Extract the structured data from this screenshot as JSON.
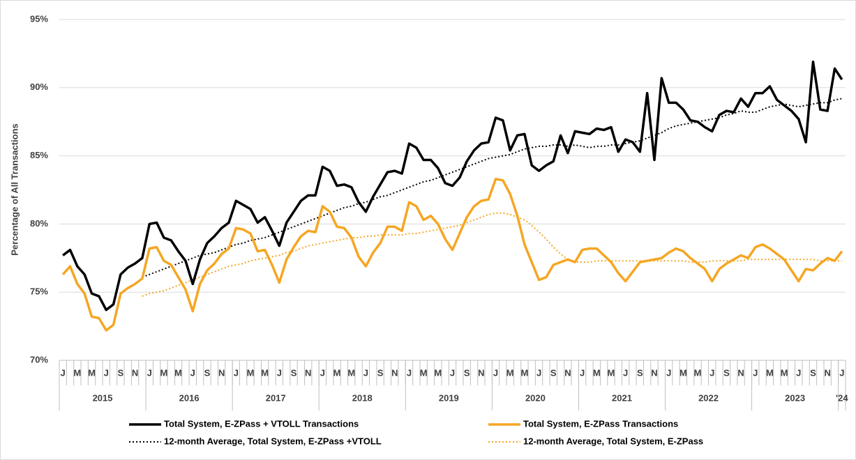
{
  "chart_data": {
    "type": "line",
    "y_axis_label": "Percentage of All Transactions",
    "ylim": [
      70,
      95
    ],
    "yticks": [
      {
        "value": 70,
        "label": "70%"
      },
      {
        "value": 75,
        "label": "75%"
      },
      {
        "value": 80,
        "label": "80%"
      },
      {
        "value": 85,
        "label": "85%"
      },
      {
        "value": 90,
        "label": "90%"
      },
      {
        "value": 95,
        "label": "95%"
      }
    ],
    "grid": true,
    "legend_position": "bottom",
    "categories": [
      "J",
      null,
      "M",
      null,
      "M",
      null,
      "J",
      null,
      "S",
      null,
      "N",
      null,
      "J",
      null,
      "M",
      null,
      "M",
      null,
      "J",
      null,
      "S",
      null,
      "N",
      null,
      "J",
      null,
      "M",
      null,
      "M",
      null,
      "J",
      null,
      "S",
      null,
      "N",
      null,
      "J",
      null,
      "M",
      null,
      "M",
      null,
      "J",
      null,
      "S",
      null,
      "N",
      null,
      "J",
      null,
      "M",
      null,
      "M",
      null,
      "J",
      null,
      "S",
      null,
      "N",
      null,
      "J",
      null,
      "M",
      null,
      "M",
      null,
      "J",
      null,
      "S",
      null,
      "N",
      null,
      "J",
      null,
      "M",
      null,
      "M",
      null,
      "J",
      null,
      "S",
      null,
      "N",
      null,
      "J",
      null,
      "M",
      null,
      "M",
      null,
      "J",
      null,
      "S",
      null,
      "N",
      null,
      "J",
      null,
      "M",
      null,
      "M",
      null,
      "J",
      null,
      "S",
      null,
      "N",
      null,
      "J"
    ],
    "category_groups": [
      {
        "label": "2015",
        "count": 12
      },
      {
        "label": "2016",
        "count": 12
      },
      {
        "label": "2017",
        "count": 12
      },
      {
        "label": "2018",
        "count": 12
      },
      {
        "label": "2019",
        "count": 12
      },
      {
        "label": "2020",
        "count": 12
      },
      {
        "label": "2021",
        "count": 12
      },
      {
        "label": "2022",
        "count": 12
      },
      {
        "label": "2023",
        "count": 12
      },
      {
        "label": "'24",
        "count": 1
      }
    ],
    "series": [
      {
        "name": "Total System, E-ZPass + VTOLL Transactions",
        "color": "#000000",
        "dotted": false,
        "values": [
          77.7,
          78.1,
          76.9,
          76.3,
          74.9,
          74.7,
          73.7,
          74.1,
          76.3,
          76.8,
          77.1,
          77.5,
          80.0,
          80.1,
          79.0,
          78.8,
          78.0,
          77.3,
          75.6,
          77.4,
          78.6,
          79.1,
          79.7,
          80.1,
          81.7,
          81.4,
          81.1,
          80.1,
          80.5,
          79.5,
          78.4,
          80.1,
          80.9,
          81.7,
          82.1,
          82.1,
          84.2,
          83.9,
          82.8,
          82.9,
          82.7,
          81.6,
          80.9,
          82.0,
          82.9,
          83.8,
          83.9,
          83.7,
          85.9,
          85.6,
          84.7,
          84.7,
          84.1,
          83.0,
          82.8,
          83.4,
          84.6,
          85.4,
          85.9,
          86.0,
          87.8,
          87.6,
          85.4,
          86.5,
          86.6,
          84.3,
          83.9,
          84.3,
          84.6,
          86.5,
          85.2,
          86.8,
          86.7,
          86.6,
          87.0,
          86.9,
          87.1,
          85.3,
          86.2,
          86.0,
          85.3,
          89.6,
          84.7,
          90.7,
          88.9,
          88.9,
          88.4,
          87.6,
          87.5,
          87.1,
          86.8,
          88.0,
          88.3,
          88.2,
          89.2,
          88.6,
          89.6,
          89.6,
          90.1,
          89.1,
          88.7,
          88.3,
          87.7,
          86.0,
          91.9,
          88.4,
          88.3,
          91.4,
          90.6
        ]
      },
      {
        "name": "Total System, E-ZPass Transactions",
        "color": "#f5a623",
        "dotted": false,
        "values": [
          76.3,
          76.9,
          75.6,
          74.9,
          73.2,
          73.1,
          72.2,
          72.6,
          74.9,
          75.3,
          75.6,
          76.0,
          78.2,
          78.3,
          77.3,
          77.0,
          76.1,
          75.2,
          73.6,
          75.6,
          76.6,
          77.1,
          77.8,
          78.2,
          79.7,
          79.6,
          79.3,
          78.0,
          78.1,
          77.0,
          75.7,
          77.4,
          78.3,
          79.1,
          79.5,
          79.4,
          81.3,
          80.9,
          79.8,
          79.7,
          79.0,
          77.6,
          76.9,
          77.9,
          78.6,
          79.8,
          79.8,
          79.5,
          81.6,
          81.3,
          80.3,
          80.6,
          80.0,
          78.9,
          78.1,
          79.3,
          80.5,
          81.3,
          81.7,
          81.8,
          83.3,
          83.2,
          82.2,
          80.6,
          78.5,
          77.2,
          75.9,
          76.1,
          77.0,
          77.2,
          77.4,
          77.2,
          78.1,
          78.2,
          78.2,
          77.7,
          77.2,
          76.4,
          75.8,
          76.5,
          77.2,
          77.3,
          77.4,
          77.5,
          77.9,
          78.2,
          78.0,
          77.5,
          77.1,
          76.7,
          75.8,
          76.7,
          77.1,
          77.4,
          77.7,
          77.5,
          78.3,
          78.5,
          78.2,
          77.8,
          77.4,
          76.6,
          75.8,
          76.7,
          76.6,
          77.1,
          77.5,
          77.3,
          78.0
        ]
      },
      {
        "name": "12-month Average, Total System, E-ZPass +VTOLL",
        "color": "#000000",
        "dotted": true,
        "values": [
          null,
          null,
          null,
          null,
          null,
          null,
          null,
          null,
          null,
          null,
          null,
          76.1,
          76.3,
          76.5,
          76.7,
          76.9,
          77.1,
          77.3,
          77.5,
          77.7,
          77.8,
          77.9,
          78.1,
          78.3,
          78.5,
          78.6,
          78.8,
          78.9,
          79.0,
          79.2,
          79.4,
          79.6,
          79.8,
          80.0,
          80.2,
          80.4,
          80.6,
          80.8,
          81.0,
          81.2,
          81.3,
          81.5,
          81.6,
          81.8,
          82.0,
          82.1,
          82.3,
          82.5,
          82.7,
          82.9,
          83.1,
          83.2,
          83.4,
          83.6,
          83.8,
          84.0,
          84.2,
          84.4,
          84.6,
          84.8,
          84.9,
          85.0,
          85.1,
          85.3,
          85.5,
          85.6,
          85.7,
          85.7,
          85.8,
          85.8,
          85.7,
          85.8,
          85.7,
          85.6,
          85.7,
          85.7,
          85.8,
          85.8,
          85.9,
          86.0,
          86.1,
          86.3,
          86.5,
          86.7,
          87.0,
          87.2,
          87.3,
          87.4,
          87.5,
          87.6,
          87.7,
          87.8,
          88.0,
          88.1,
          88.3,
          88.2,
          88.2,
          88.4,
          88.6,
          88.7,
          88.8,
          88.7,
          88.6,
          88.7,
          88.8,
          88.9,
          88.9,
          89.1,
          89.2
        ]
      },
      {
        "name": "12-month Average, Total System, E-ZPass",
        "color": "#f5a623",
        "dotted": true,
        "values": [
          null,
          null,
          null,
          null,
          null,
          null,
          null,
          null,
          null,
          null,
          null,
          74.7,
          74.9,
          75.0,
          75.1,
          75.3,
          75.5,
          75.7,
          75.9,
          76.1,
          76.3,
          76.5,
          76.7,
          76.9,
          77.0,
          77.1,
          77.3,
          77.4,
          77.5,
          77.6,
          77.7,
          77.9,
          78.0,
          78.2,
          78.4,
          78.5,
          78.6,
          78.7,
          78.8,
          78.9,
          79.0,
          79.0,
          79.1,
          79.1,
          79.2,
          79.2,
          79.2,
          79.2,
          79.3,
          79.3,
          79.4,
          79.5,
          79.6,
          79.7,
          79.8,
          79.9,
          80.1,
          80.3,
          80.5,
          80.7,
          80.8,
          80.8,
          80.7,
          80.5,
          80.3,
          79.9,
          79.4,
          78.9,
          78.3,
          77.8,
          77.4,
          77.2,
          77.2,
          77.2,
          77.3,
          77.3,
          77.3,
          77.3,
          77.3,
          77.3,
          77.3,
          77.3,
          77.3,
          77.3,
          77.3,
          77.3,
          77.3,
          77.2,
          77.2,
          77.2,
          77.3,
          77.3,
          77.3,
          77.3,
          77.3,
          77.4,
          77.4,
          77.4,
          77.4,
          77.4,
          77.4,
          77.4,
          77.4,
          77.4,
          77.4,
          77.3,
          77.3,
          77.3,
          77.3
        ]
      }
    ]
  }
}
